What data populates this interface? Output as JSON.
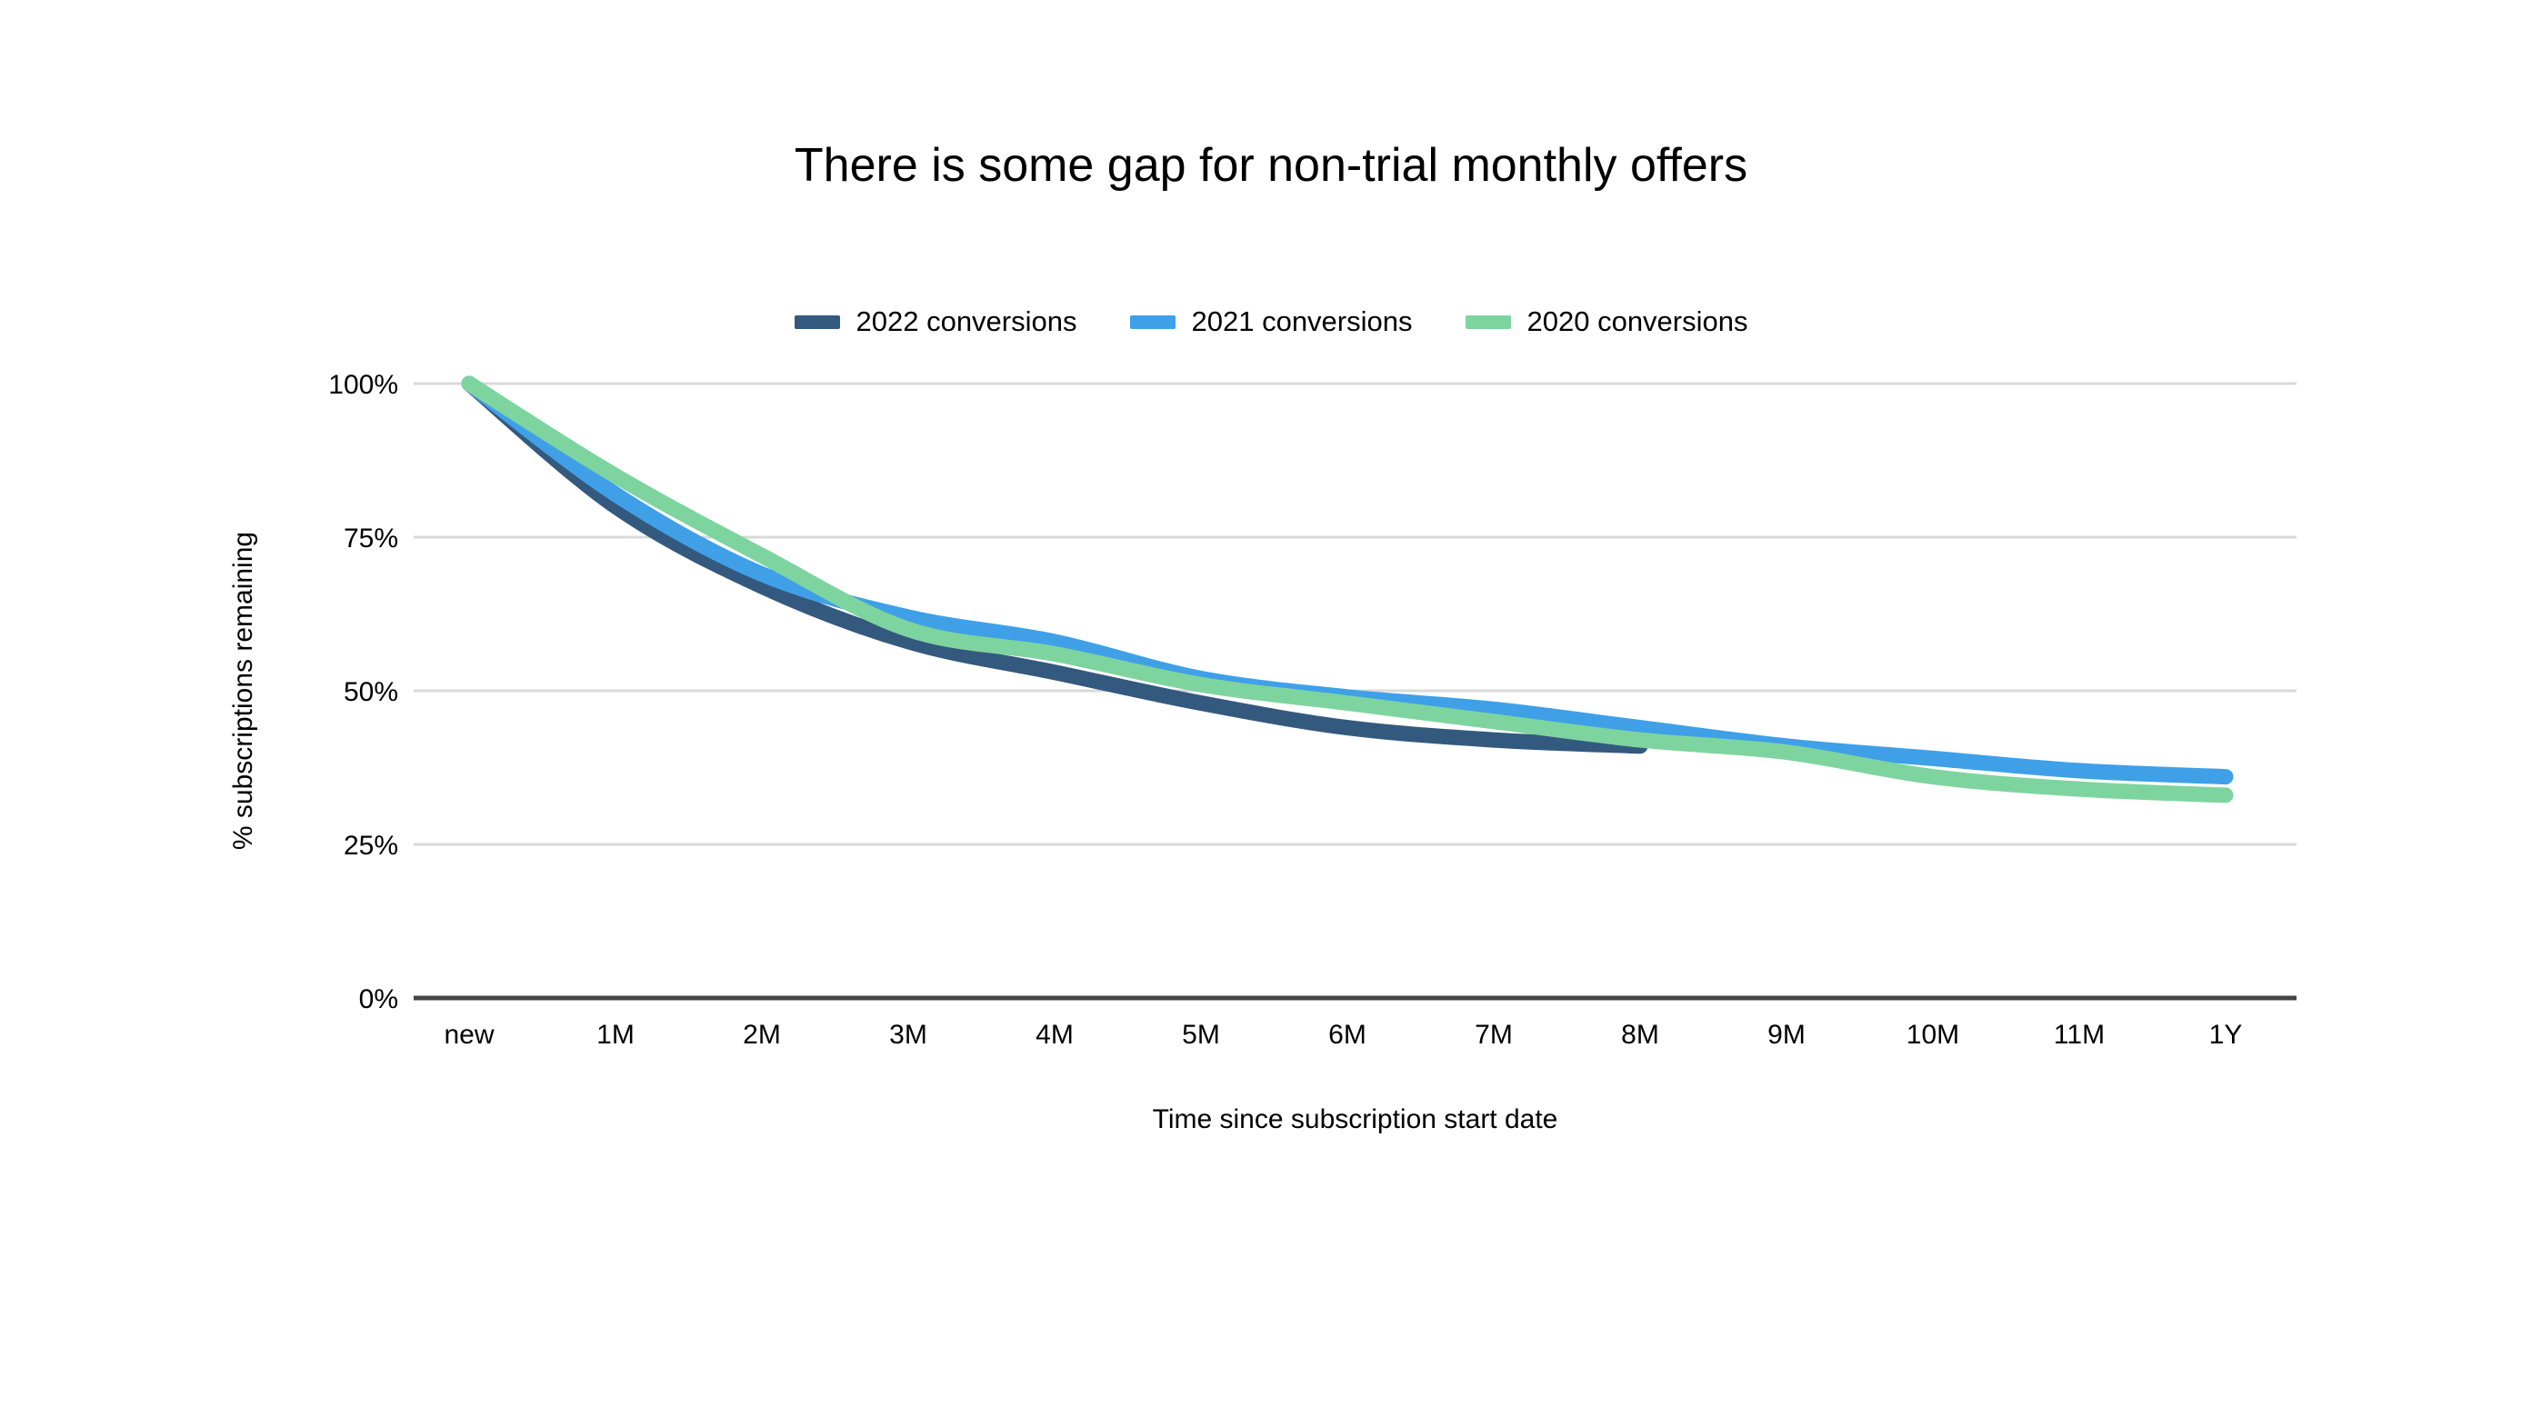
{
  "title": "There is some gap for non-trial monthly offers",
  "chart_data": {
    "type": "line",
    "title": "There is some gap for non-trial monthly offers",
    "xlabel": "Time since subscription start date",
    "ylabel": "% subscriptions remaining",
    "categories": [
      "new",
      "1M",
      "2M",
      "3M",
      "4M",
      "5M",
      "6M",
      "7M",
      "8M",
      "9M",
      "10M",
      "11M",
      "1Y"
    ],
    "series": [
      {
        "name": "2022 conversions",
        "color": "#34597e",
        "values": [
          100,
          80,
          67,
          58,
          53,
          48,
          44,
          42,
          41,
          null,
          null,
          null,
          null
        ]
      },
      {
        "name": "2021 conversions",
        "color": "#3fa0e8",
        "values": [
          100,
          82,
          69,
          62,
          58,
          52,
          49,
          47,
          44,
          41,
          39,
          37,
          36
        ]
      },
      {
        "name": "2020 conversions",
        "color": "#7ed49f",
        "values": [
          100,
          85,
          72,
          60,
          56,
          51,
          48,
          45,
          42,
          40,
          36,
          34,
          33
        ]
      }
    ],
    "y_tick_labels": [
      "0%",
      "25%",
      "50%",
      "75%",
      "100%"
    ],
    "y_tick_values": [
      0,
      25,
      50,
      75,
      100
    ],
    "ylim": [
      0,
      100
    ],
    "grid": true,
    "legend_position": "top",
    "colors": {
      "gridline": "#d9d9d9",
      "axis_line": "#444444",
      "text": "#000000",
      "background": "#ffffff"
    }
  }
}
